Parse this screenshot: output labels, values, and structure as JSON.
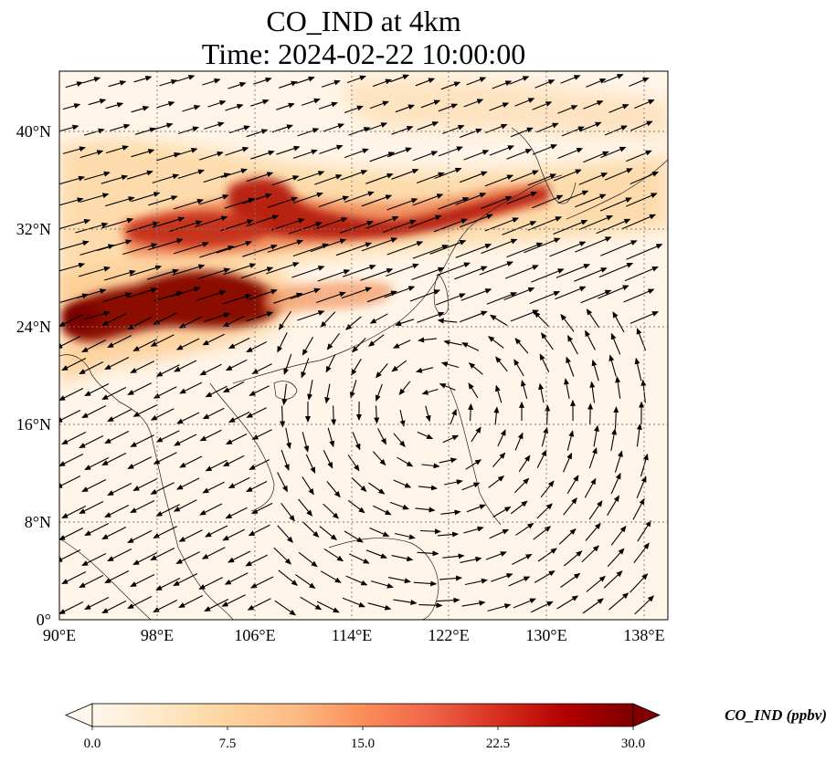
{
  "title": {
    "line1": "CO_IND at 4km",
    "line2": "Time: 2024-02-22 10:00:00"
  },
  "map": {
    "lon_range": [
      90,
      139.5
    ],
    "lat_range": [
      0,
      45
    ],
    "lon_ticks": [
      "90°E",
      "98°E",
      "106°E",
      "114°E",
      "122°E",
      "130°E",
      "138°E"
    ],
    "lat_ticks": [
      "0°",
      "8°N",
      "16°N",
      "24°N",
      "32°N",
      "40°N"
    ],
    "gridlines": true,
    "gridline_style": "dotted gray"
  },
  "colorbar": {
    "label": "CO_IND (ppbv)",
    "ticks": [
      "0.0",
      "7.5",
      "15.0",
      "22.5",
      "30.0"
    ],
    "range": [
      0,
      30
    ],
    "extend": "both",
    "colormap": "OrRd",
    "colors": [
      "#fff7ec",
      "#fee8c8",
      "#fdd49e",
      "#fdbb84",
      "#fc8d59",
      "#ef6548",
      "#d7301f",
      "#b30000",
      "#7f0000"
    ]
  },
  "wind_vectors": {
    "shown": true,
    "color": "#000000"
  }
}
